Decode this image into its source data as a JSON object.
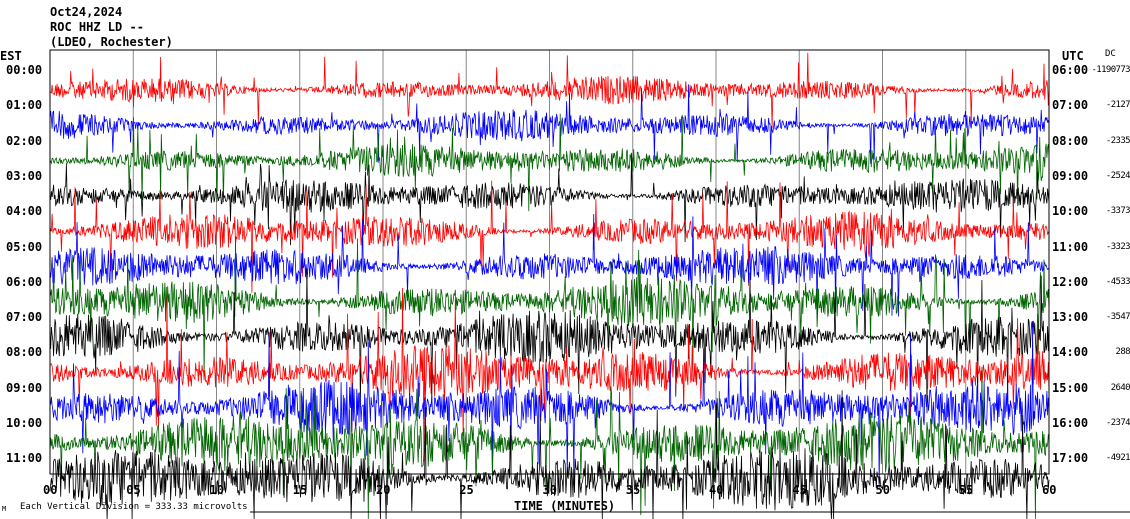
{
  "header": {
    "date": "Oct24,2024",
    "station": "ROC HHZ LD --",
    "network": "(LDEO, Rochester)"
  },
  "left_axis_title": "EST",
  "right_axis_title": "UTC",
  "dc_title": "DC",
  "footer": {
    "corner_mark": "M",
    "scale_note": "Each Vertical Division = 333.33 microvolts"
  },
  "chart_data": {
    "type": "line",
    "subtype": "helicorder",
    "xlabel": "TIME (MINUTES)",
    "xlim": [
      0,
      60
    ],
    "x_ticks": [
      "00",
      "05",
      "10",
      "15",
      "20",
      "25",
      "30",
      "35",
      "40",
      "45",
      "50",
      "55",
      "60"
    ],
    "grid": "vertical every 5 minutes",
    "trace_colors": [
      "#ff0000",
      "#0000ff",
      "#006400",
      "#000000"
    ],
    "rows": [
      {
        "est": "00:00",
        "utc": "06:00",
        "dc": "-1190773",
        "amplitude": 0.8
      },
      {
        "est": "01:00",
        "utc": "07:00",
        "dc": "-2127",
        "amplitude": 0.9
      },
      {
        "est": "02:00",
        "utc": "08:00",
        "dc": "-2335",
        "amplitude": 1.0
      },
      {
        "est": "03:00",
        "utc": "09:00",
        "dc": "-2524",
        "amplitude": 1.0
      },
      {
        "est": "04:00",
        "utc": "10:00",
        "dc": "-3373",
        "amplitude": 1.1
      },
      {
        "est": "05:00",
        "utc": "11:00",
        "dc": "-3323",
        "amplitude": 1.2
      },
      {
        "est": "06:00",
        "utc": "12:00",
        "dc": "-4533",
        "amplitude": 1.4
      },
      {
        "est": "07:00",
        "utc": "13:00",
        "dc": "-3547",
        "amplitude": 1.5
      },
      {
        "est": "08:00",
        "utc": "14:00",
        "dc": "288",
        "amplitude": 1.6
      },
      {
        "est": "09:00",
        "utc": "15:00",
        "dc": "2640",
        "amplitude": 1.6
      },
      {
        "est": "10:00",
        "utc": "16:00",
        "dc": "-2374",
        "amplitude": 1.7
      },
      {
        "est": "11:00",
        "utc": "17:00",
        "dc": "-4921",
        "amplitude": 1.8
      }
    ]
  }
}
